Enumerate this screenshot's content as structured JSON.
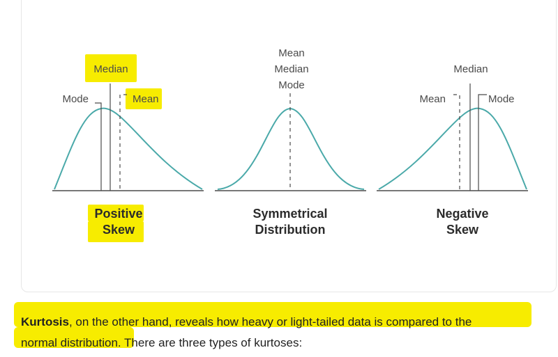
{
  "diagram": {
    "positive": {
      "median_label": "Median",
      "mode_label": "Mode",
      "mean_label": "Mean",
      "caption_line1": "Positive",
      "caption_line2": "Skew"
    },
    "symmetrical": {
      "mean_label": "Mean",
      "median_label": "Median",
      "mode_label": "Mode",
      "caption_line1": "Symmetrical",
      "caption_line2": "Distribution"
    },
    "negative": {
      "median_label": "Median",
      "mean_label": "Mean",
      "mode_label": "Mode",
      "caption_line1": "Negative",
      "caption_line2": "Skew"
    },
    "curve_color": "#4aa9a9",
    "highlight_color": "#f7ec00"
  },
  "paragraph": {
    "term": "Kurtosis",
    "text_line1": ", on the other hand, reveals how heavy or light-tailed data is compared to the",
    "text_line2": "normal distribution. There are three types of kurtoses:"
  }
}
